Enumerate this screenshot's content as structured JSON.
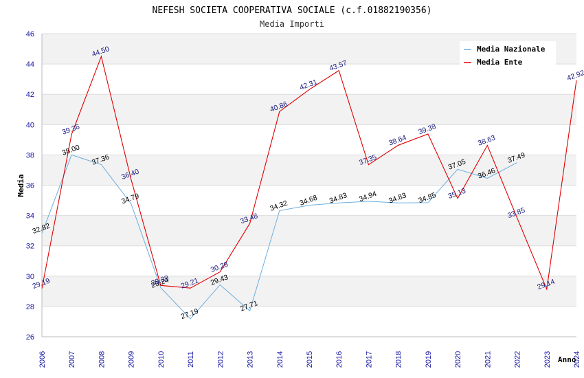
{
  "chart_data": {
    "type": "line",
    "title": "NEFESH SOCIETA COOPERATIVA SOCIALE (c.f.01882190356)",
    "subtitle": "Media Importi",
    "ylabel": "Media",
    "xlabel": "Anno",
    "ylim": [
      26,
      46
    ],
    "yticks": [
      "26",
      "28",
      "30",
      "32",
      "34",
      "36",
      "38",
      "40",
      "42",
      "44",
      "46"
    ],
    "categories": [
      "2006",
      "2007",
      "2008",
      "2009",
      "2010",
      "2011",
      "2012",
      "2013",
      "2014",
      "2015",
      "2016",
      "2017",
      "2018",
      "2019",
      "2020",
      "2021",
      "2022",
      "2023",
      "2024"
    ],
    "grid": true,
    "legend_position": "top-right",
    "series": [
      {
        "name": "Media Nazionale",
        "color": "#6aaee0",
        "values": [
          32.82,
          38.0,
          37.36,
          34.79,
          29.24,
          27.19,
          29.43,
          27.71,
          34.32,
          34.68,
          34.83,
          34.94,
          34.83,
          34.85,
          37.05,
          36.46,
          37.49,
          null,
          null
        ],
        "labels": [
          "32.82",
          "38.00",
          "37.36",
          "34.79",
          "29.24",
          "27.19",
          "29.43",
          "27.71",
          "34.32",
          "34.68",
          "34.83",
          "34.94",
          "34.83",
          "34.85",
          "37.05",
          "36.46",
          "37.49",
          "",
          ""
        ]
      },
      {
        "name": "Media Ente",
        "color": "#e00000",
        "values": [
          29.19,
          39.36,
          44.5,
          36.4,
          29.39,
          29.21,
          30.28,
          33.48,
          40.86,
          42.31,
          43.57,
          37.35,
          38.64,
          39.38,
          35.13,
          38.63,
          33.85,
          29.14,
          42.92
        ],
        "labels": [
          "29.19",
          "39.36",
          "44.50",
          "36.40",
          "29.39",
          "29.21",
          "30.28",
          "33.48",
          "40.86",
          "42.31",
          "43.57",
          "37.35",
          "38.64",
          "39.38",
          "35.13",
          "38.63",
          "33.85",
          "29.14",
          "42.92"
        ]
      }
    ]
  }
}
